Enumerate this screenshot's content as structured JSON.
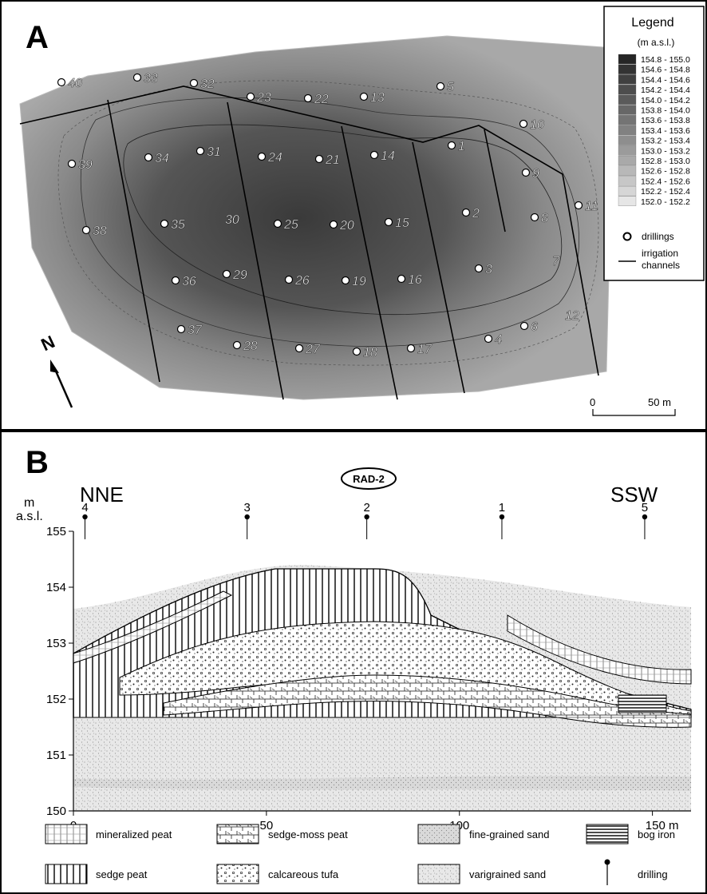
{
  "panel_a": {
    "label": "A",
    "north": "N",
    "legend": {
      "title": "Legend",
      "unit": "(m  a.s.l.)",
      "classes": [
        {
          "label": "154.8 - 155.0",
          "color": "#262626"
        },
        {
          "label": "154.6 - 154.8",
          "color": "#333333"
        },
        {
          "label": "154.4 - 154.6",
          "color": "#404040"
        },
        {
          "label": "154.2 - 154.4",
          "color": "#4d4d4d"
        },
        {
          "label": "154.0 - 154.2",
          "color": "#5a5a5a"
        },
        {
          "label": "153.8 - 154.0",
          "color": "#676767"
        },
        {
          "label": "153.6 - 153.8",
          "color": "#747474"
        },
        {
          "label": "153.4 - 153.6",
          "color": "#818181"
        },
        {
          "label": "153.2 - 153.4",
          "color": "#8e8e8e"
        },
        {
          "label": "153.0 - 153.2",
          "color": "#9b9b9b"
        },
        {
          "label": "152.8 - 153.0",
          "color": "#a9a9a9"
        },
        {
          "label": "152.6 - 152.8",
          "color": "#b8b8b8"
        },
        {
          "label": "152.4 - 152.6",
          "color": "#c7c7c7"
        },
        {
          "label": "152.2 - 152.4",
          "color": "#d6d6d6"
        },
        {
          "label": "152.0 - 152.2",
          "color": "#e6e6e6"
        }
      ],
      "drillings_label": "drillings",
      "channels_label_1": "irrigation",
      "channels_label_2": "channels"
    },
    "scale": {
      "start": "0",
      "end": "50 m"
    },
    "drilling_labels": [
      "1",
      "2",
      "3",
      "4",
      "5",
      "6",
      "7",
      "8",
      "9",
      "10",
      "11",
      "12",
      "13",
      "14",
      "15",
      "16",
      "17",
      "18",
      "19",
      "20",
      "21",
      "22",
      "23",
      "24",
      "25",
      "26",
      "27",
      "28",
      "29",
      "30",
      "31",
      "32",
      "33",
      "34",
      "35",
      "36",
      "37",
      "38",
      "39",
      "40"
    ]
  },
  "panel_b": {
    "label": "B",
    "left_direction": "NNE",
    "right_direction": "SSW",
    "core": "RAD-2",
    "y_unit_1": "m",
    "y_unit_2": "a.s.l.",
    "y_ticks": [
      "150",
      "151",
      "152",
      "153",
      "154",
      "155"
    ],
    "x_ticks": [
      "0",
      "50",
      "100",
      "150 m"
    ],
    "drillings": [
      {
        "label": "4",
        "x": 3
      },
      {
        "label": "3",
        "x": 45
      },
      {
        "label": "2",
        "x": 76
      },
      {
        "label": "1",
        "x": 111
      },
      {
        "label": "5",
        "x": 148
      }
    ],
    "legend": {
      "mineralized_peat": "mineralized peat",
      "sedge_moss_peat": "sedge-moss peat",
      "fine_sand": "fine-grained sand",
      "bog_iron": "bog iron",
      "sedge_peat": "sedge peat",
      "tufa": "calcareous tufa",
      "varigrained_sand": "varigrained sand",
      "drilling": "drilling"
    }
  }
}
